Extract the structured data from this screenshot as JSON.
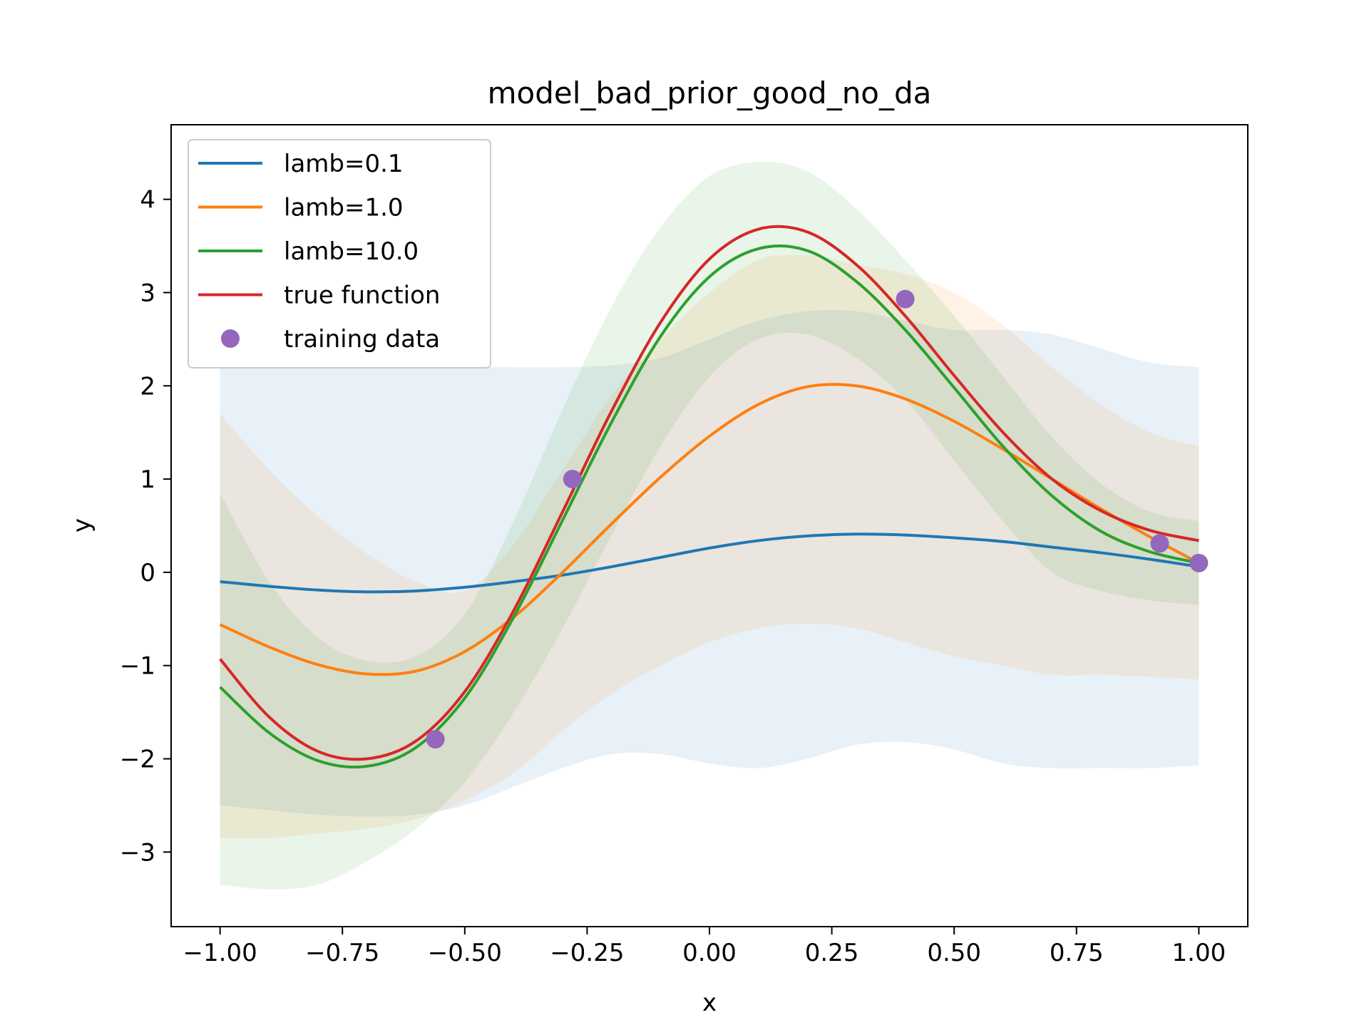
{
  "chart_data": {
    "type": "line",
    "title": "model_bad_prior_good_no_da",
    "xlabel": "x",
    "ylabel": "y",
    "xlim": [
      -1.1,
      1.1
    ],
    "ylim": [
      -3.8,
      4.8
    ],
    "xticks": [
      {
        "value": -1.0,
        "label": "−1.00"
      },
      {
        "value": -0.75,
        "label": "−0.75"
      },
      {
        "value": -0.5,
        "label": "−0.50"
      },
      {
        "value": -0.25,
        "label": "−0.25"
      },
      {
        "value": 0.0,
        "label": "0.00"
      },
      {
        "value": 0.25,
        "label": "0.25"
      },
      {
        "value": 0.5,
        "label": "0.50"
      },
      {
        "value": 0.75,
        "label": "0.75"
      },
      {
        "value": 1.0,
        "label": "1.00"
      }
    ],
    "yticks": [
      {
        "value": -3,
        "label": "−3"
      },
      {
        "value": -2,
        "label": "−2"
      },
      {
        "value": -1,
        "label": "−1"
      },
      {
        "value": 0,
        "label": "0"
      },
      {
        "value": 1,
        "label": "1"
      },
      {
        "value": 2,
        "label": "2"
      },
      {
        "value": 3,
        "label": "3"
      },
      {
        "value": 4,
        "label": "4"
      }
    ],
    "grid": false,
    "legend_position": "upper-left",
    "x": [
      -1.0,
      -0.9,
      -0.8,
      -0.7,
      -0.6,
      -0.5,
      -0.4,
      -0.3,
      -0.2,
      -0.1,
      0.0,
      0.1,
      0.2,
      0.3,
      0.4,
      0.5,
      0.6,
      0.7,
      0.8,
      0.9,
      1.0
    ],
    "series": [
      {
        "name": "lamb=0.1",
        "color": "#1f77b4",
        "values": [
          -0.1,
          -0.15,
          -0.19,
          -0.21,
          -0.2,
          -0.16,
          -0.1,
          -0.03,
          0.06,
          0.16,
          0.26,
          0.34,
          0.39,
          0.41,
          0.4,
          0.37,
          0.33,
          0.27,
          0.21,
          0.14,
          0.06
        ],
        "band_lower": [
          -2.5,
          -2.55,
          -2.6,
          -2.62,
          -2.6,
          -2.5,
          -2.3,
          -2.1,
          -1.95,
          -1.95,
          -2.05,
          -2.1,
          -2.0,
          -1.85,
          -1.82,
          -1.9,
          -2.05,
          -2.1,
          -2.1,
          -2.1,
          -2.07
        ],
        "band_upper": [
          2.2,
          2.2,
          2.2,
          2.2,
          2.2,
          2.2,
          2.2,
          2.2,
          2.22,
          2.3,
          2.5,
          2.7,
          2.8,
          2.8,
          2.7,
          2.6,
          2.6,
          2.55,
          2.4,
          2.25,
          2.2
        ]
      },
      {
        "name": "lamb=1.0",
        "color": "#ff7f0e",
        "values": [
          -0.56,
          -0.8,
          -0.99,
          -1.09,
          -1.06,
          -0.85,
          -0.48,
          0.0,
          0.52,
          1.02,
          1.46,
          1.8,
          1.99,
          2.0,
          1.86,
          1.62,
          1.32,
          1.0,
          0.68,
          0.38,
          0.1
        ],
        "band_lower": [
          -2.85,
          -2.85,
          -2.8,
          -2.75,
          -2.65,
          -2.45,
          -2.15,
          -1.7,
          -1.3,
          -1.0,
          -0.75,
          -0.6,
          -0.55,
          -0.6,
          -0.75,
          -0.9,
          -1.0,
          -1.1,
          -1.1,
          -1.12,
          -1.15
        ],
        "band_upper": [
          1.7,
          1.1,
          0.6,
          0.2,
          -0.1,
          -0.2,
          0.3,
          1.1,
          1.9,
          2.5,
          3.0,
          3.35,
          3.4,
          3.3,
          3.2,
          3.0,
          2.65,
          2.2,
          1.8,
          1.5,
          1.35
        ]
      },
      {
        "name": "lamb=10.0",
        "color": "#2ca02c",
        "values": [
          -1.23,
          -1.72,
          -2.02,
          -2.08,
          -1.88,
          -1.35,
          -0.48,
          0.56,
          1.61,
          2.53,
          3.17,
          3.47,
          3.45,
          3.12,
          2.6,
          1.98,
          1.35,
          0.82,
          0.44,
          0.22,
          0.1
        ],
        "band_lower": [
          -3.35,
          -3.4,
          -3.35,
          -3.1,
          -2.75,
          -2.25,
          -1.5,
          -0.6,
          0.4,
          1.35,
          2.1,
          2.5,
          2.55,
          2.3,
          1.85,
          1.2,
          0.55,
          0.0,
          -0.2,
          -0.3,
          -0.35
        ],
        "band_upper": [
          0.85,
          -0.1,
          -0.7,
          -0.95,
          -0.9,
          -0.45,
          0.55,
          1.75,
          2.85,
          3.7,
          4.25,
          4.4,
          4.3,
          3.9,
          3.35,
          2.75,
          2.1,
          1.45,
          0.95,
          0.65,
          0.55
        ]
      },
      {
        "name": "true function",
        "color": "#d62728",
        "values": [
          -0.93,
          -1.55,
          -1.92,
          -2.0,
          -1.81,
          -1.28,
          -0.41,
          0.65,
          1.73,
          2.68,
          3.36,
          3.68,
          3.65,
          3.3,
          2.75,
          2.11,
          1.5,
          1.0,
          0.66,
          0.45,
          0.34
        ]
      }
    ],
    "training_data": {
      "name": "training data",
      "color": "#9467bd",
      "points": [
        {
          "x": -0.56,
          "y": -1.79
        },
        {
          "x": -0.28,
          "y": 1.0
        },
        {
          "x": 0.4,
          "y": 2.93
        },
        {
          "x": 0.92,
          "y": 0.31
        },
        {
          "x": 1.0,
          "y": 0.1
        }
      ]
    }
  }
}
